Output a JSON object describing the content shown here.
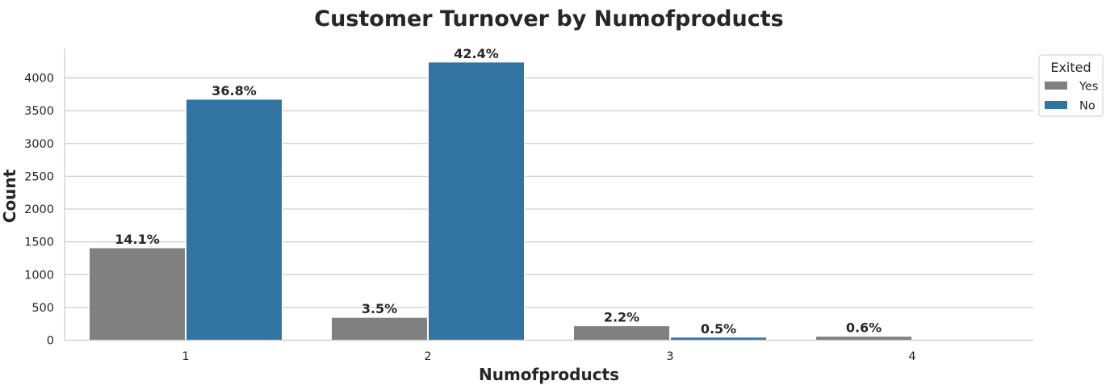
{
  "chart_data": {
    "type": "bar",
    "title": "Customer Turnover by Numofproducts",
    "xlabel": "Numofproducts",
    "ylabel": "Count",
    "categories": [
      "1",
      "2",
      "3",
      "4"
    ],
    "series": [
      {
        "name": "Yes",
        "color": "#808080",
        "values": [
          1409,
          348,
          220,
          60
        ],
        "labels": [
          "14.1%",
          "3.5%",
          "2.2%",
          "0.6%"
        ]
      },
      {
        "name": "No",
        "color": "#3274a1",
        "values": [
          3675,
          4242,
          46,
          0
        ],
        "labels": [
          "36.8%",
          "42.4%",
          "0.5%",
          ""
        ]
      }
    ],
    "ylim": [
      0,
      4450
    ],
    "yticks": [
      0,
      500,
      1000,
      1500,
      2000,
      2500,
      3000,
      3500,
      4000
    ],
    "grid": "horizontal",
    "legend": {
      "title": "Exited",
      "placement": "upper-right-outside"
    }
  }
}
